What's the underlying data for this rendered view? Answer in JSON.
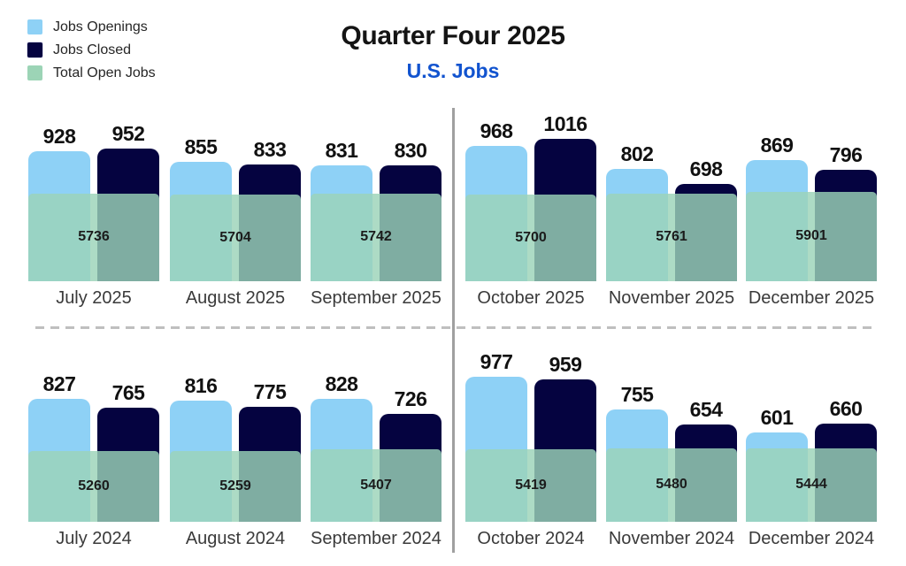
{
  "chart_data": {
    "type": "bar",
    "title": "Quarter Four 2025",
    "subtitle": "U.S. Jobs",
    "legend": [
      {
        "label": "Jobs Openings",
        "color": "#8ed1f6"
      },
      {
        "label": "Jobs Closed",
        "color": "#050340"
      },
      {
        "label": "Total Open Jobs",
        "color": "#9cd4b6"
      }
    ],
    "quadrants": [
      {
        "position": "top-left",
        "months": [
          {
            "month": "July 2025",
            "jobs_openings": 928,
            "jobs_closed": 952,
            "total_open_jobs": 5736
          },
          {
            "month": "August 2025",
            "jobs_openings": 855,
            "jobs_closed": 833,
            "total_open_jobs": 5704
          },
          {
            "month": "September 2025",
            "jobs_openings": 831,
            "jobs_closed": 830,
            "total_open_jobs": 5742
          }
        ]
      },
      {
        "position": "top-right",
        "months": [
          {
            "month": "October 2025",
            "jobs_openings": 968,
            "jobs_closed": 1016,
            "total_open_jobs": 5700
          },
          {
            "month": "November 2025",
            "jobs_openings": 802,
            "jobs_closed": 698,
            "total_open_jobs": 5761
          },
          {
            "month": "December 2025",
            "jobs_openings": 869,
            "jobs_closed": 796,
            "total_open_jobs": 5901
          }
        ]
      },
      {
        "position": "bottom-left",
        "months": [
          {
            "month": "July 2024",
            "jobs_openings": 827,
            "jobs_closed": 765,
            "total_open_jobs": 5260
          },
          {
            "month": "August 2024",
            "jobs_openings": 816,
            "jobs_closed": 775,
            "total_open_jobs": 5259
          },
          {
            "month": "September 2024",
            "jobs_openings": 828,
            "jobs_closed": 726,
            "total_open_jobs": 5407
          }
        ]
      },
      {
        "position": "bottom-right",
        "months": [
          {
            "month": "October 2024",
            "jobs_openings": 977,
            "jobs_closed": 959,
            "total_open_jobs": 5419
          },
          {
            "month": "November 2024",
            "jobs_openings": 755,
            "jobs_closed": 654,
            "total_open_jobs": 5480
          },
          {
            "month": "December 2024",
            "jobs_openings": 601,
            "jobs_closed": 660,
            "total_open_jobs": 5444
          }
        ]
      }
    ]
  },
  "colors": {
    "title": "#141414",
    "subtitle": "#1153cf",
    "openings_bar": "#8ed1f6",
    "closed_bar": "#050340",
    "total_overlay_base": "#9bd3b8",
    "divider_solid": "#a0a0a0",
    "divider_dashed": "#bfbfbf"
  }
}
